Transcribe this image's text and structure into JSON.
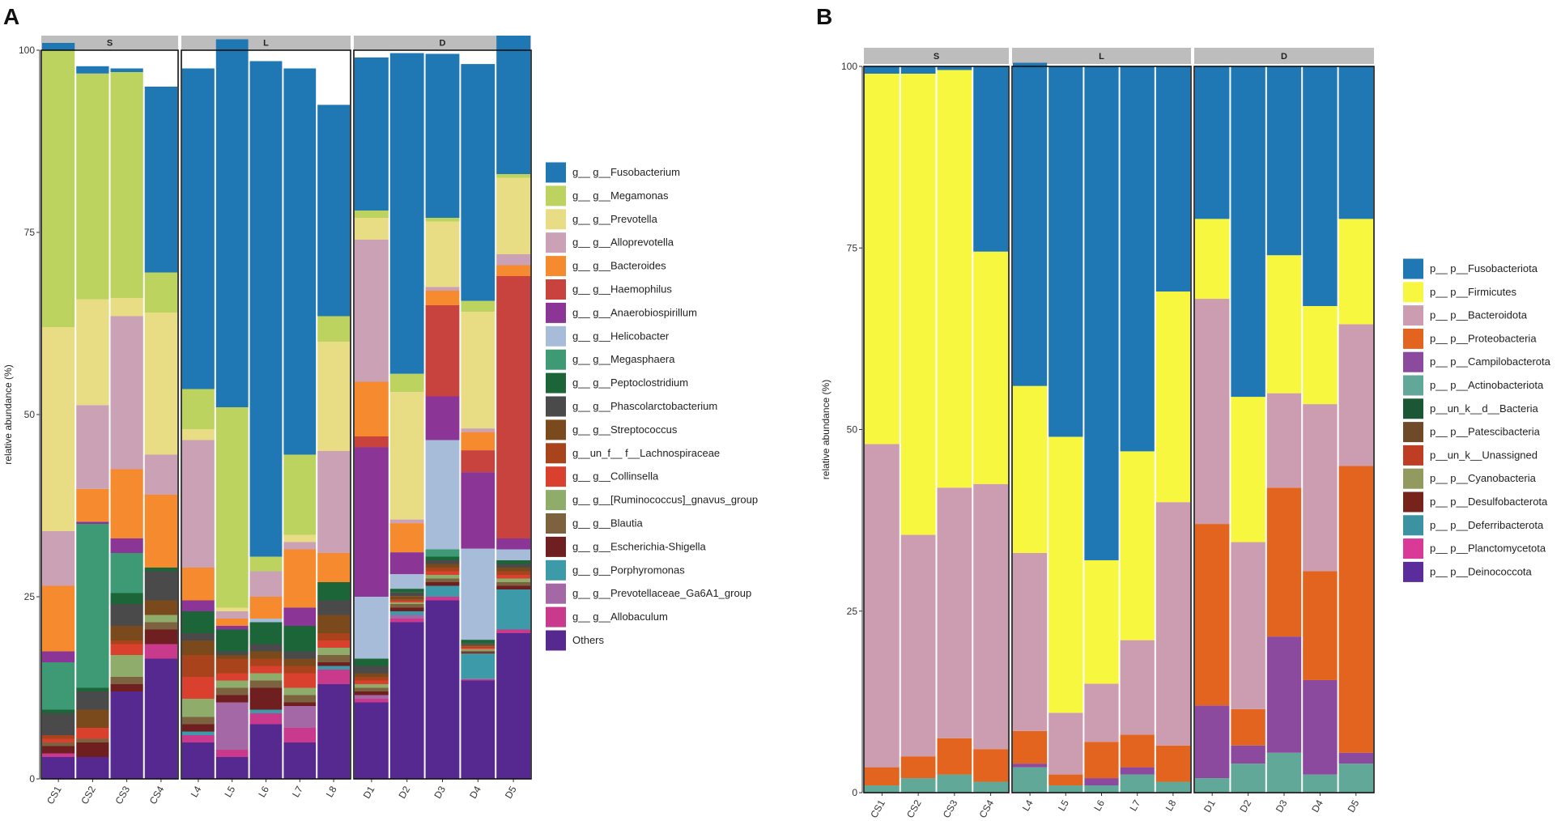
{
  "figure_labels": {
    "a": "A",
    "b": "B"
  },
  "chart_data": [
    {
      "panel": "A",
      "type": "bar",
      "stacked": true,
      "ylabel": "relative abundance (%)",
      "xlabel": "",
      "ylim": [
        0,
        100
      ],
      "yticks": [
        0,
        25,
        50,
        75,
        100
      ],
      "facets": [
        {
          "label": "S",
          "samples": [
            "CS1",
            "CS2",
            "CS3",
            "CS4"
          ]
        },
        {
          "label": "L",
          "samples": [
            "L4",
            "L5",
            "L6",
            "L7",
            "L8"
          ]
        },
        {
          "label": "D",
          "samples": [
            "D1",
            "D2",
            "D3",
            "D4",
            "D5"
          ]
        }
      ],
      "legend": [
        {
          "name": "g__ g__Fusobacterium",
          "color": "#1f77b4"
        },
        {
          "name": "g__ g__Megamonas",
          "color": "#bcd35f"
        },
        {
          "name": "g__ g__Prevotella",
          "color": "#e8dc85"
        },
        {
          "name": "g__ g__Alloprevotella",
          "color": "#cba1b6"
        },
        {
          "name": "g__ g__Bacteroides",
          "color": "#f58b2e"
        },
        {
          "name": "g__ g__Haemophilus",
          "color": "#c8433e"
        },
        {
          "name": "g__ g__Anaerobiospirillum",
          "color": "#8b3597"
        },
        {
          "name": "g__ g__Helicobacter",
          "color": "#a6bcd8"
        },
        {
          "name": "g__ g__Megasphaera",
          "color": "#3e9a75"
        },
        {
          "name": "g__ g__Peptoclostridium",
          "color": "#1b6538"
        },
        {
          "name": "g__ g__Phascolarctobacterium",
          "color": "#4a4a4a"
        },
        {
          "name": "g__ g__Streptococcus",
          "color": "#7b4a1c"
        },
        {
          "name": "g__un_f__ f__Lachnospiraceae",
          "color": "#a8431c"
        },
        {
          "name": "g__ g__Collinsella",
          "color": "#d9412e"
        },
        {
          "name": "g__ g__[Ruminococcus]_gnavus_group",
          "color": "#8fac6b"
        },
        {
          "name": "g__ g__Blautia",
          "color": "#7d6240"
        },
        {
          "name": "g__ g__Escherichia-Shigella",
          "color": "#6f1f20"
        },
        {
          "name": "g__ g__Porphyromonas",
          "color": "#3d9aa8"
        },
        {
          "name": "g__ g__Prevotellaceae_Ga6A1_group",
          "color": "#a368a5"
        },
        {
          "name": "g__ g__Allobaculum",
          "color": "#c93a8c"
        },
        {
          "name": "Others",
          "color": "#55298f"
        }
      ],
      "stack_order": [
        "Others",
        "g__ g__Allobaculum",
        "g__ g__Prevotellaceae_Ga6A1_group",
        "g__ g__Porphyromonas",
        "g__ g__Escherichia-Shigella",
        "g__ g__Blautia",
        "g__ g__[Ruminococcus]_gnavus_group",
        "g__ g__Collinsella",
        "g__un_f__ f__Lachnospiraceae",
        "g__ g__Streptococcus",
        "g__ g__Phascolarctobacterium",
        "g__ g__Peptoclostridium",
        "g__ g__Megasphaera",
        "g__ g__Helicobacter",
        "g__ g__Anaerobiospirillum",
        "g__ g__Haemophilus",
        "g__ g__Bacteroides",
        "g__ g__Alloprevotella",
        "g__ g__Prevotella",
        "g__ g__Megamonas",
        "g__ g__Fusobacterium"
      ],
      "series": [
        {
          "name": "Others",
          "values": [
            3,
            3,
            12,
            16.5,
            5,
            3,
            7.5,
            5,
            13,
            10.5,
            21.5,
            24.5,
            13.5,
            20
          ]
        },
        {
          "name": "g__ g__Allobaculum",
          "values": [
            0.5,
            0,
            0,
            2,
            1,
            1,
            1.5,
            2,
            2,
            0.5,
            0.5,
            0.5,
            0.2,
            0.5
          ]
        },
        {
          "name": "g__ g__Prevotellaceae_Ga6A1_group",
          "values": [
            0,
            0,
            0,
            0,
            0,
            6.5,
            0,
            3,
            0,
            0.5,
            0.5,
            0,
            0,
            0
          ]
        },
        {
          "name": "g__ g__Porphyromonas",
          "values": [
            0,
            0,
            0,
            0,
            0.5,
            0,
            0.5,
            0,
            0.5,
            0,
            0.5,
            1.5,
            3.5,
            5.5
          ]
        },
        {
          "name": "g__ g__Escherichia-Shigella",
          "values": [
            1,
            2,
            1,
            2,
            1,
            1,
            3,
            0.5,
            0.5,
            0.5,
            0.5,
            0.5,
            0.2,
            0.5
          ]
        },
        {
          "name": "g__ g__Blautia",
          "values": [
            0.5,
            0.5,
            1,
            1,
            1,
            1,
            1,
            1,
            1,
            0.5,
            0.5,
            0.5,
            0.2,
            0.5
          ]
        },
        {
          "name": "g__ g__[Ruminococcus]_gnavus_group",
          "values": [
            0,
            0,
            3,
            1,
            2.5,
            1,
            1,
            1,
            1,
            0.5,
            0.2,
            0.5,
            0.2,
            0.5
          ]
        },
        {
          "name": "g__ g__Collinsella",
          "values": [
            0.5,
            1.5,
            1.5,
            0,
            3,
            1,
            1,
            2,
            1,
            0.5,
            0.2,
            0.5,
            0.2,
            0.5
          ]
        },
        {
          "name": "g__un_f__ f__Lachnospiraceae",
          "values": [
            0.5,
            0,
            0.5,
            0,
            3,
            2,
            1,
            1,
            1,
            0.5,
            0.2,
            0.5,
            0.2,
            0.5
          ]
        },
        {
          "name": "g__ g__Streptococcus",
          "values": [
            0,
            2.5,
            2,
            2,
            2,
            0.5,
            1,
            1,
            2.5,
            0.5,
            0.5,
            0.5,
            0.2,
            0.5
          ]
        },
        {
          "name": "g__ g__Phascolarctobacterium",
          "values": [
            3,
            2.5,
            3,
            4,
            1,
            0.5,
            1,
            1,
            2,
            1,
            0.5,
            0.5,
            0.2,
            0.5
          ]
        },
        {
          "name": "g__ g__Peptoclostridium",
          "values": [
            0.5,
            0.5,
            1.5,
            0.5,
            3,
            3,
            3,
            3.5,
            2.5,
            1,
            0.5,
            0.5,
            0.5,
            0.5
          ]
        },
        {
          "name": "g__ g__Megasphaera",
          "values": [
            6.5,
            22.5,
            5.5,
            0,
            0,
            0,
            0,
            0,
            0,
            0,
            0,
            1,
            0,
            0
          ]
        },
        {
          "name": "g__ g__Helicobacter",
          "values": [
            0,
            0,
            0,
            0,
            0,
            0,
            0.5,
            0,
            0,
            8.5,
            2,
            15,
            12.5,
            1.5
          ]
        },
        {
          "name": "g__ g__Anaerobiospirillum",
          "values": [
            1.5,
            0.3,
            2,
            0,
            1.5,
            0.5,
            0,
            2.5,
            0,
            20.5,
            3,
            6,
            10.5,
            1.5
          ]
        },
        {
          "name": "g__ g__Haemophilus",
          "values": [
            0,
            0,
            0,
            0,
            0,
            0,
            0,
            0,
            0,
            1.5,
            0,
            12.5,
            3,
            36
          ]
        },
        {
          "name": "g__ g__Bacteroides",
          "values": [
            9,
            4.5,
            9.5,
            10,
            4.5,
            1,
            3,
            8,
            4,
            7.5,
            4,
            2,
            2.5,
            1.5
          ]
        },
        {
          "name": "g__ g__Alloprevotella",
          "values": [
            7.5,
            11.5,
            21,
            5.5,
            17.5,
            1,
            3.5,
            1,
            14,
            19.5,
            0.5,
            0.5,
            0.5,
            1.5
          ]
        },
        {
          "name": "g__ g__Prevotella",
          "values": [
            28,
            14.5,
            2.5,
            19.5,
            1.5,
            0.5,
            0,
            1,
            15,
            3,
            17.5,
            9,
            16,
            10.5
          ]
        },
        {
          "name": "g__ g__Megamonas",
          "values": [
            38,
            31,
            31,
            5.5,
            5.5,
            27.5,
            2,
            11,
            3.5,
            1,
            2.5,
            0.5,
            1.5,
            0.5
          ]
        },
        {
          "name": "g__ g__Fusobacterium",
          "values": [
            1,
            1,
            0.5,
            25.5,
            44,
            50.5,
            68,
            53,
            29,
            21,
            44,
            22.5,
            32.5,
            19
          ]
        }
      ]
    },
    {
      "panel": "B",
      "type": "bar",
      "stacked": true,
      "ylabel": "relative abundance (%)",
      "xlabel": "",
      "ylim": [
        0,
        100
      ],
      "yticks": [
        0,
        25,
        50,
        75,
        100
      ],
      "facets": [
        {
          "label": "S",
          "samples": [
            "CS1",
            "CS2",
            "CS3",
            "CS4"
          ]
        },
        {
          "label": "L",
          "samples": [
            "L4",
            "L5",
            "L6",
            "L7",
            "L8"
          ]
        },
        {
          "label": "D",
          "samples": [
            "D1",
            "D2",
            "D3",
            "D4",
            "D5"
          ]
        }
      ],
      "legend": [
        {
          "name": "p__ p__Fusobacteriota",
          "color": "#1f77b4"
        },
        {
          "name": "p__ p__Firmicutes",
          "color": "#f8f740"
        },
        {
          "name": "p__ p__Bacteroidota",
          "color": "#cc9db0"
        },
        {
          "name": "p__ p__Proteobacteria",
          "color": "#e3641e"
        },
        {
          "name": "p__ p__Campilobacterota",
          "color": "#8c4a9e"
        },
        {
          "name": "p__ p__Actinobacteriota",
          "color": "#62a898"
        },
        {
          "name": "p__un_k__d__Bacteria",
          "color": "#1b5734"
        },
        {
          "name": "p__ p__Patescibacteria",
          "color": "#6e4a28"
        },
        {
          "name": "p__un_k__Unassigned",
          "color": "#bf3e23"
        },
        {
          "name": "p__ p__Cyanobacteria",
          "color": "#939a5f"
        },
        {
          "name": "p__ p__Desulfobacterota",
          "color": "#76231b"
        },
        {
          "name": "p__ p__Deferribacterota",
          "color": "#3b92a0"
        },
        {
          "name": "p__ p__Planctomycetota",
          "color": "#d93a98"
        },
        {
          "name": "p__ p__Deinococcota",
          "color": "#5b2c9b"
        }
      ],
      "stack_order": [
        "p__ p__Actinobacteriota",
        "p__ p__Campilobacterota",
        "p__ p__Proteobacteria",
        "p__ p__Bacteroidota",
        "p__ p__Firmicutes",
        "p__ p__Fusobacteriota"
      ],
      "series": [
        {
          "name": "p__ p__Actinobacteriota",
          "values": [
            1,
            2,
            2.5,
            1.5,
            3.5,
            1,
            1,
            2.5,
            1.5,
            2,
            4,
            5.5,
            2.5,
            4
          ]
        },
        {
          "name": "p__ p__Campilobacterota",
          "values": [
            0,
            0,
            0,
            0,
            0.5,
            0,
            1,
            1,
            0,
            10,
            2.5,
            16,
            13,
            1.5
          ]
        },
        {
          "name": "p__ p__Proteobacteria",
          "values": [
            2.5,
            3,
            5,
            4.5,
            4.5,
            1.5,
            5,
            4.5,
            5,
            25,
            5,
            20.5,
            15,
            39.5
          ]
        },
        {
          "name": "p__ p__Bacteroidota",
          "values": [
            44.5,
            30.5,
            34.5,
            36.5,
            24.5,
            8.5,
            8,
            13,
            33.5,
            31,
            23,
            13,
            23,
            19.5
          ]
        },
        {
          "name": "p__ p__Firmicutes",
          "values": [
            51,
            63.5,
            57.5,
            32,
            23,
            38,
            17,
            26,
            29,
            11,
            20,
            19,
            13.5,
            14.5
          ]
        },
        {
          "name": "p__ p__Fusobacteriota",
          "values": [
            1,
            1,
            0.5,
            25.5,
            44.5,
            51,
            68,
            53,
            31,
            21,
            45.5,
            26,
            33,
            21
          ]
        }
      ]
    }
  ]
}
